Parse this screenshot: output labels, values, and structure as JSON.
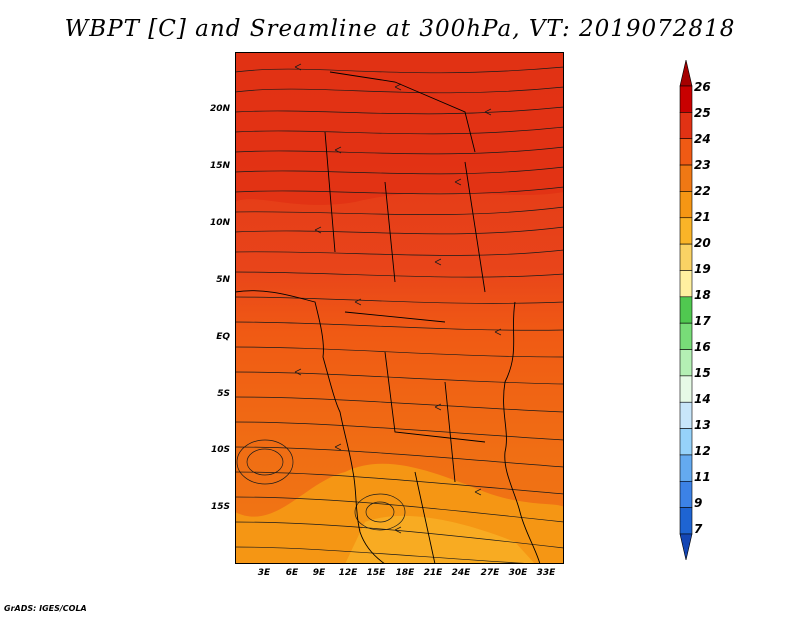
{
  "title": "WBPT [C] and Sreamline at 300hPa, VT: 2019072818",
  "footer": "GrADS: IGES/COLA",
  "lat_labels": [
    "20N",
    "15N",
    "10N",
    "5N",
    "EQ",
    "5S",
    "10S",
    "15S"
  ],
  "lon_labels": [
    "3E",
    "6E",
    "9E",
    "12E",
    "15E",
    "18E",
    "21E",
    "24E",
    "27E",
    "30E",
    "33E"
  ],
  "colorbar": {
    "levels": [
      "26",
      "25",
      "24",
      "23",
      "22",
      "21",
      "20",
      "19",
      "18",
      "17",
      "16",
      "15",
      "14",
      "13",
      "12",
      "11",
      "9",
      "7"
    ],
    "colors": [
      "#a50000",
      "#c80000",
      "#e13214",
      "#f05a14",
      "#f07814",
      "#f59614",
      "#fab428",
      "#fad264",
      "#fff0a0",
      "#50c850",
      "#78dc78",
      "#b4f0b4",
      "#e6fae6",
      "#c8e6fa",
      "#96d2fa",
      "#64aaf0",
      "#3c82e6",
      "#1e64d2",
      "#1446b4"
    ]
  }
}
